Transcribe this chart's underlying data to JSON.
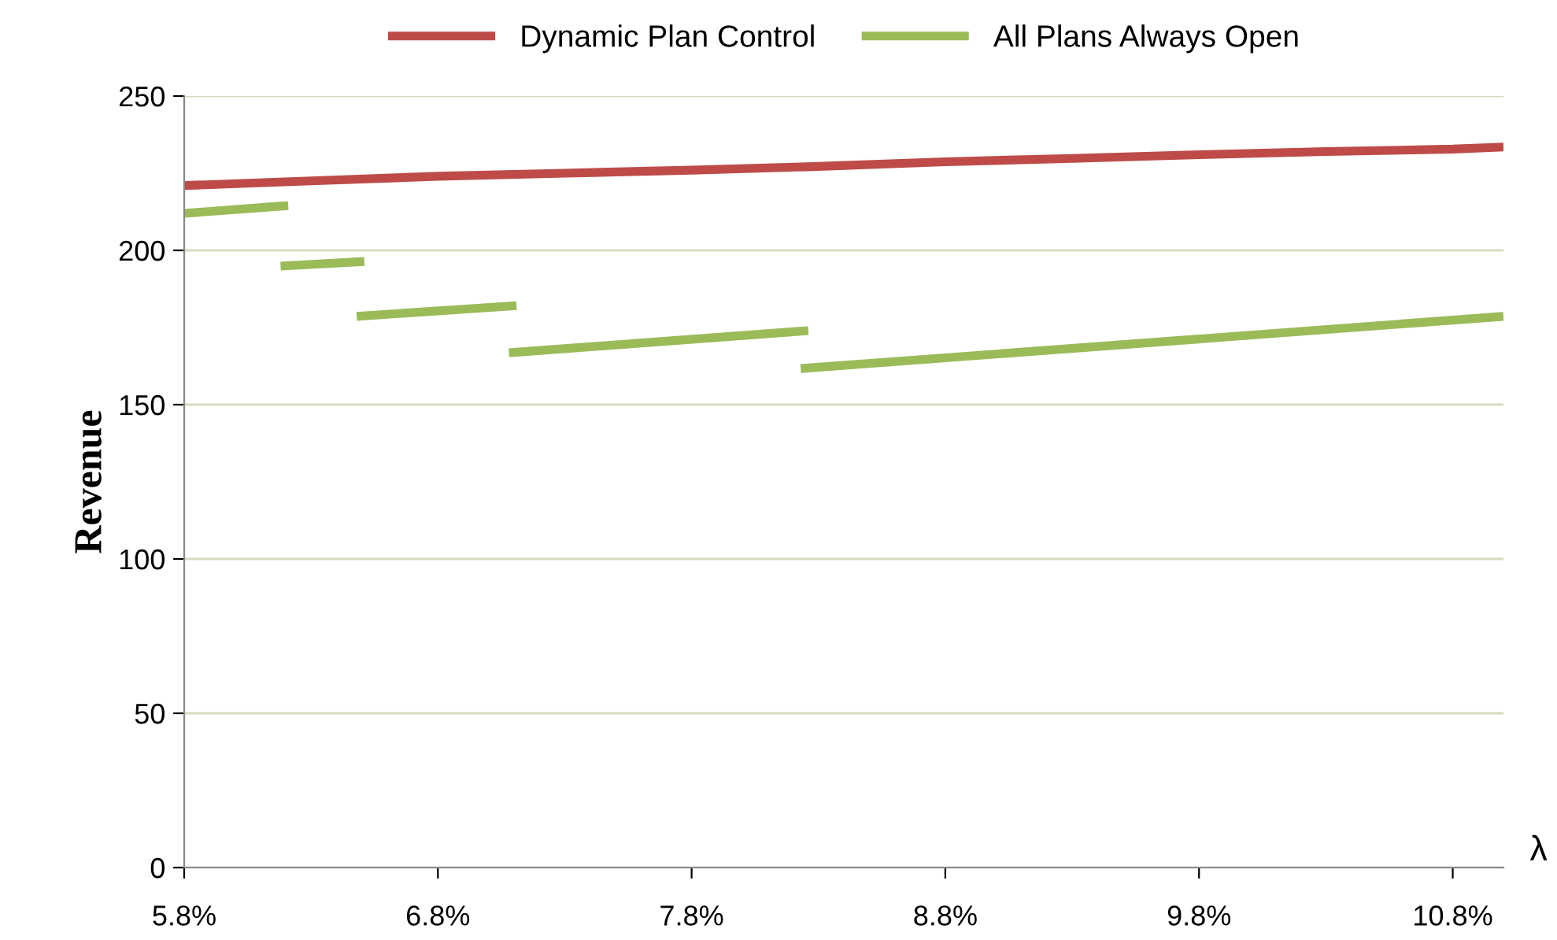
{
  "chart_data": {
    "type": "line",
    "xlabel": "λ",
    "ylabel": "Revenue",
    "xlim": [
      5.8,
      11.0
    ],
    "xticks": [
      {
        "value": 5.8,
        "label": "5.8%"
      },
      {
        "value": 6.8,
        "label": "6.8%"
      },
      {
        "value": 7.8,
        "label": "7.8%"
      },
      {
        "value": 8.8,
        "label": "8.8%"
      },
      {
        "value": 9.8,
        "label": "9.8%"
      },
      {
        "value": 10.8,
        "label": "10.8%"
      }
    ],
    "ylim": [
      0,
      250
    ],
    "yticks": [
      0,
      50,
      100,
      150,
      200,
      250
    ],
    "grid": "y",
    "legend": "top",
    "series": [
      {
        "name": "Dynamic Plan Control",
        "color": "#be4b48",
        "x": [
          5.8,
          6.3,
          6.8,
          7.3,
          7.8,
          8.3,
          8.8,
          9.3,
          9.8,
          10.3,
          10.8,
          11.0
        ],
        "values": [
          221,
          222.5,
          224,
          225,
          226,
          227.2,
          228.7,
          229.8,
          231,
          232,
          232.8,
          233.5
        ]
      },
      {
        "name": "All Plans Always Open",
        "color": "#9bbb59",
        "x": [
          5.8,
          6.21,
          6.2,
          6.18,
          6.51,
          6.5,
          6.48,
          7.11,
          7.1,
          7.08,
          8.26,
          8.25,
          8.23,
          11.0
        ],
        "values": [
          212,
          214.5,
          null,
          194.9,
          196.4,
          null,
          178.6,
          182.1,
          null,
          166.8,
          174,
          null,
          161.7,
          178.6
        ]
      }
    ]
  }
}
